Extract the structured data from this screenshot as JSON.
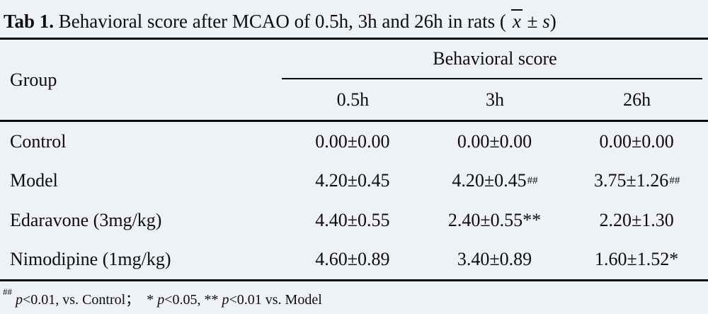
{
  "title": {
    "bold": "Tab 1.",
    "main": " Behavioral score after MCAO of 0.5h, 3h and 26h in rats (",
    "xbar": "x",
    "pm": " ± ",
    "s": "s",
    "close": ")"
  },
  "header": {
    "group": "Group",
    "span": "Behavioral score",
    "cols": [
      "0.5h",
      "3h",
      "26h"
    ]
  },
  "rows": [
    {
      "group": "Control",
      "cells": [
        {
          "t": "0.00±0.00",
          "sup": ""
        },
        {
          "t": "0.00±0.00",
          "sup": ""
        },
        {
          "t": "0.00±0.00",
          "sup": ""
        }
      ]
    },
    {
      "group": "Model",
      "cells": [
        {
          "t": "4.20±0.45",
          "sup": ""
        },
        {
          "t": "4.20±0.45",
          "sup": "##"
        },
        {
          "t": "3.75±1.26",
          "sup": "##"
        }
      ]
    },
    {
      "group": "Edaravone (3mg/kg)",
      "cells": [
        {
          "t": "4.40±0.55",
          "sup": ""
        },
        {
          "t": "2.40±0.55**",
          "sup": ""
        },
        {
          "t": "2.20±1.30",
          "sup": ""
        }
      ]
    },
    {
      "group": "Nimodipine (1mg/kg)",
      "cells": [
        {
          "t": "4.60±0.89",
          "sup": ""
        },
        {
          "t": "3.40±0.89",
          "sup": ""
        },
        {
          "t": "1.60±1.52*",
          "sup": ""
        }
      ]
    }
  ],
  "footnote": {
    "sup": "##",
    "parts": [
      {
        "i": "p",
        "t": "<0.01, vs. Control；  * "
      },
      {
        "i": "p",
        "t": "<0.05, ** "
      },
      {
        "i": "p",
        "t": "<0.01 vs. Model"
      }
    ]
  },
  "colors": {
    "background": "#eef1f5",
    "text": "#0d0d0d",
    "rule": "#0a0a0a"
  }
}
